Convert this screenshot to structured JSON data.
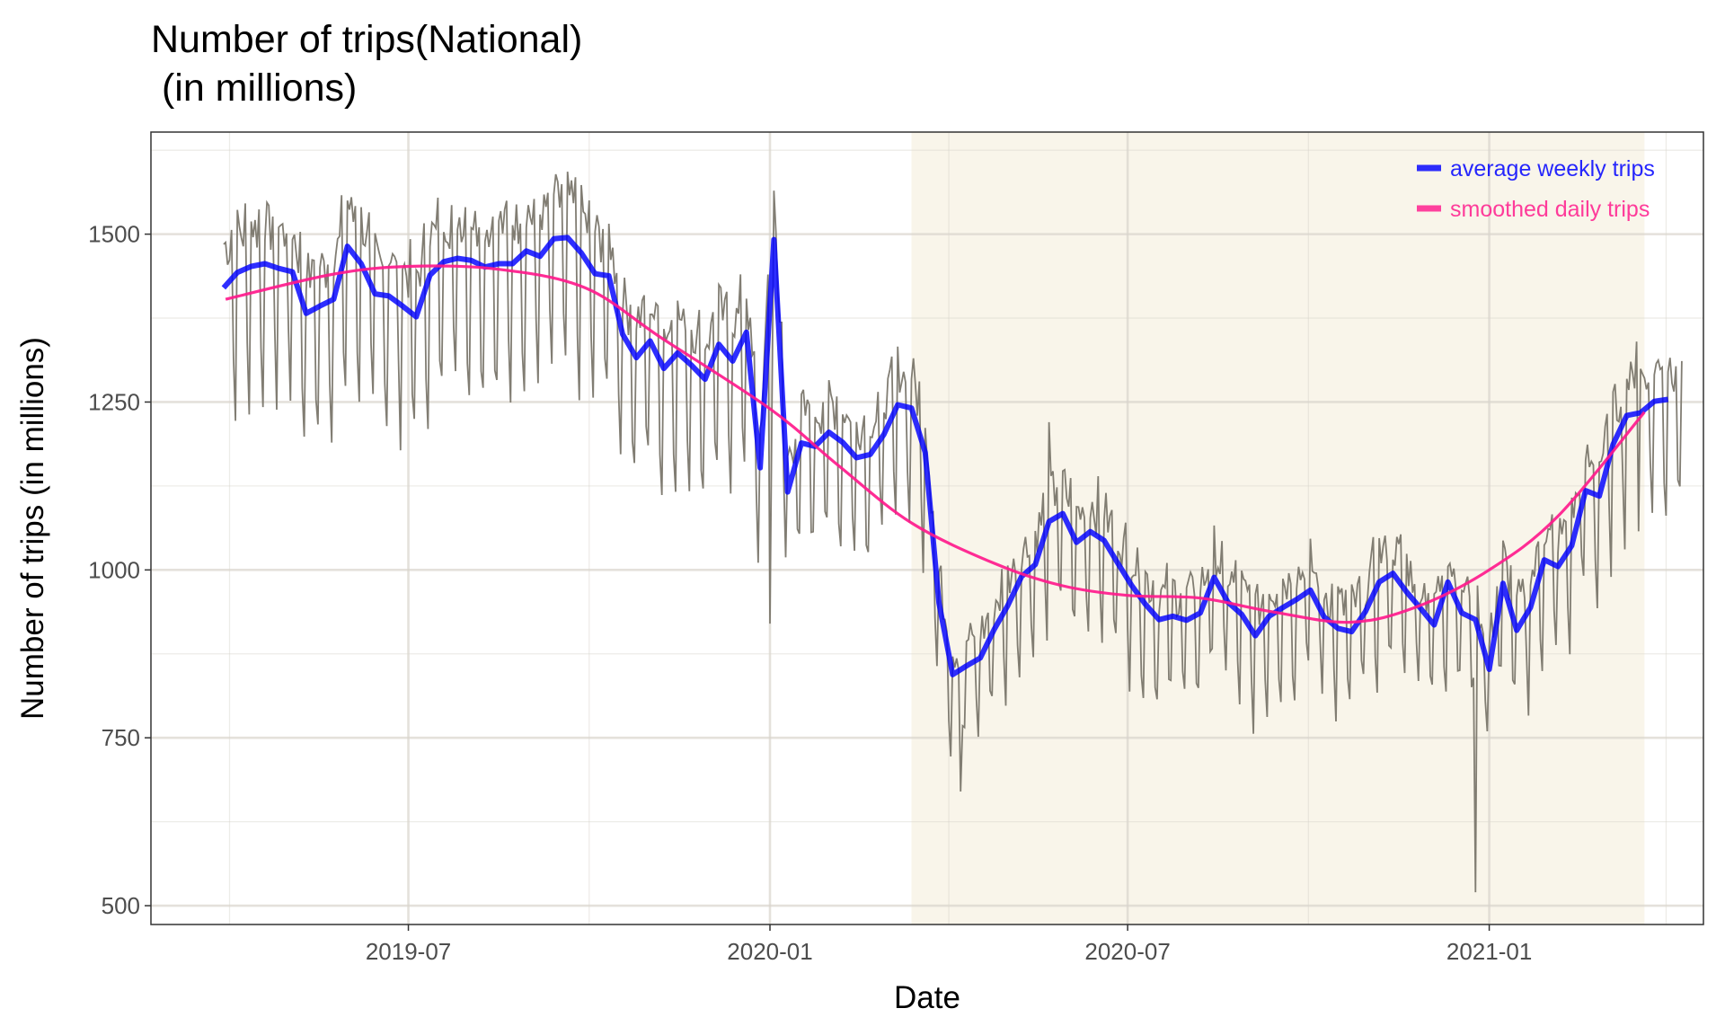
{
  "chart_data": {
    "type": "line",
    "title_line1": "Number of trips(National)",
    "title_line2": " (in millions)",
    "xlabel": "Date",
    "ylabel": "Number of trips (in millions)",
    "xlim": [
      "2019-02-20",
      "2021-04-20"
    ],
    "ylim": [
      472,
      1652
    ],
    "x_ticks": [
      "2019-07",
      "2020-01",
      "2020-07",
      "2021-01"
    ],
    "x_tick_dates": [
      "2019-07-01",
      "2020-01-01",
      "2020-07-01",
      "2021-01-01"
    ],
    "x_minor_dates": [
      "2019-04-01",
      "2019-10-01",
      "2020-04-01",
      "2020-10-01",
      "2021-04-01"
    ],
    "y_ticks": [
      500,
      750,
      1000,
      1250,
      1500
    ],
    "y_tick_labels": [
      "500",
      "750",
      "1000",
      "1250",
      "1500"
    ],
    "y_minor": [
      625,
      875,
      1125,
      1375,
      1625
    ],
    "grid": true,
    "legend_position": "top-right",
    "shaded_period": {
      "start": "2020-03-13",
      "end": "2021-03-21",
      "color": "#f9f5ea"
    },
    "series": [
      {
        "name": "average weekly trips",
        "color": "#0000ff",
        "start": "2019-03-29",
        "step_days": 7,
        "values": [
          1420,
          1443,
          1452,
          1456,
          1449,
          1444,
          1382,
          1393,
          1403,
          1482,
          1456,
          1411,
          1408,
          1393,
          1377,
          1439,
          1459,
          1464,
          1461,
          1451,
          1456,
          1456,
          1475,
          1467,
          1493,
          1495,
          1472,
          1441,
          1438,
          1351,
          1316,
          1341,
          1300,
          1323,
          1305,
          1284,
          1336,
          1311,
          1354,
          1152,
          1492,
          1116,
          1189,
          1184,
          1205,
          1190,
          1167,
          1172,
          1202,
          1246,
          1241,
          1175,
          951,
          844,
          857,
          869,
          911,
          947,
          990,
          1008,
          1072,
          1084,
          1041,
          1057,
          1044,
          1010,
          977,
          949,
          926,
          931,
          925,
          936,
          989,
          952,
          934,
          902,
          931,
          944,
          956,
          970,
          930,
          913,
          908,
          938,
          982,
          995,
          967,
          943,
          918,
          982,
          936,
          926,
          852,
          980,
          910,
          944,
          1015,
          1005,
          1036,
          1118,
          1110,
          1187,
          1230,
          1234,
          1251,
          1254
        ]
      },
      {
        "name": "smoothed daily trips",
        "color": "#ff1a8c",
        "points": [
          [
            "2019-03-30",
            1403
          ],
          [
            "2019-05-23",
            1440
          ],
          [
            "2019-07-01",
            1452
          ],
          [
            "2019-08-15",
            1448
          ],
          [
            "2019-09-29",
            1420
          ],
          [
            "2019-11-07",
            1345
          ],
          [
            "2020-01-01",
            1240
          ],
          [
            "2020-02-05",
            1155
          ],
          [
            "2020-03-13",
            1070
          ],
          [
            "2020-04-24",
            1010
          ],
          [
            "2020-05-28",
            977
          ],
          [
            "2020-07-01",
            962
          ],
          [
            "2020-08-07",
            958
          ],
          [
            "2020-09-12",
            938
          ],
          [
            "2020-10-22",
            922
          ],
          [
            "2020-11-25",
            945
          ],
          [
            "2021-01-01",
            1000
          ],
          [
            "2021-02-05",
            1080
          ],
          [
            "2021-03-21",
            1235
          ]
        ]
      },
      {
        "name": "daily trips",
        "color": "#7a766c",
        "derived_from": "average weekly trips",
        "weekday_offsets": [
          60,
          55,
          50,
          45,
          70,
          -110,
          -170
        ],
        "outliers": [
          [
            "2019-12-31",
            1440
          ],
          [
            "2020-01-01",
            920
          ],
          [
            "2020-04-07",
            670
          ],
          [
            "2020-05-22",
            1220
          ],
          [
            "2020-12-25",
            520
          ],
          [
            "2021-03-17",
            1340
          ]
        ]
      }
    ]
  }
}
